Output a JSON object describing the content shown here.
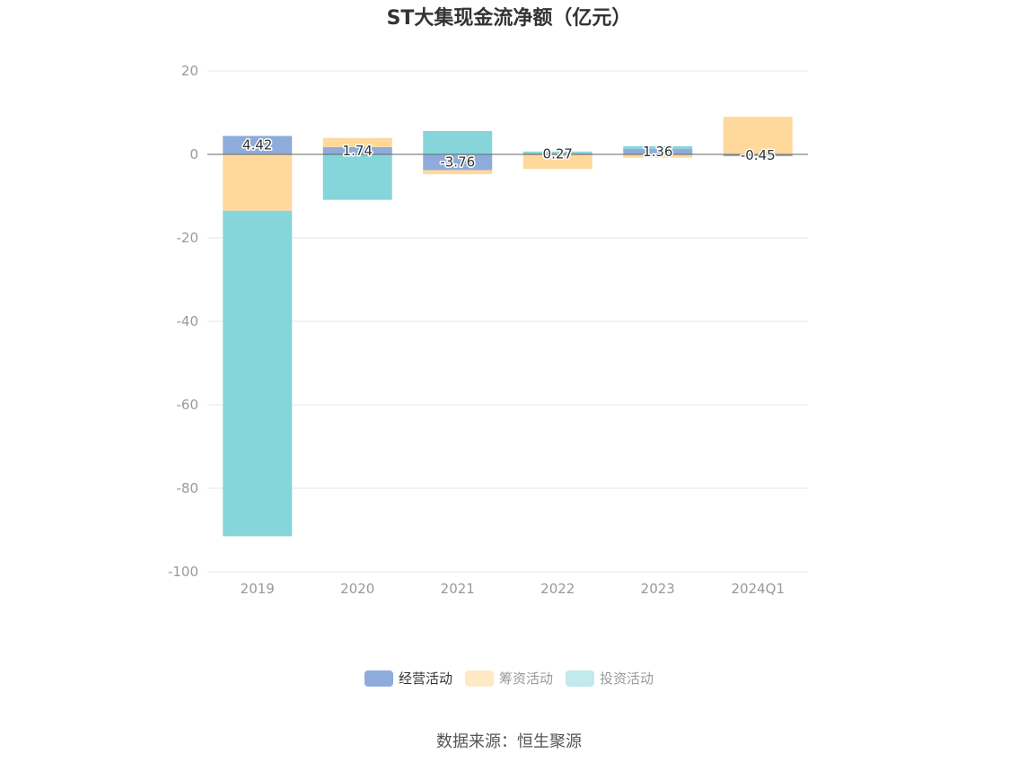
{
  "chart_data": {
    "type": "bar",
    "stacked": true,
    "title": "ST大集现金流净额（亿元）",
    "categories": [
      "2019",
      "2020",
      "2021",
      "2022",
      "2023",
      "2024Q1"
    ],
    "series": [
      {
        "name": "经营活动",
        "color": "#8eacdb",
        "values": [
          4.42,
          1.74,
          -3.76,
          0.27,
          1.36,
          -0.45
        ]
      },
      {
        "name": "筹资活动",
        "color": "#ffd99b",
        "values": [
          -13.5,
          2.2,
          -1.0,
          -3.5,
          -0.8,
          9.0
        ]
      },
      {
        "name": "投资活动",
        "color": "#86d5da",
        "values": [
          -78.0,
          -10.9,
          5.6,
          0.4,
          0.6,
          0.0
        ]
      }
    ],
    "data_labels": [
      "4.42",
      "1.74",
      "-3.76",
      "0.27",
      "1.36",
      "-0.45"
    ],
    "y_ticks": [
      "20",
      "0",
      "-20",
      "-40",
      "-60",
      "-80",
      "-100"
    ],
    "ylim": [
      -100,
      20
    ],
    "grid": true,
    "legend_position": "bottom"
  },
  "legend": {
    "items": [
      {
        "label": "经营活动",
        "color": "#8eacdb",
        "faded": false
      },
      {
        "label": "筹资活动",
        "color": "#ffe9c4",
        "faded": true
      },
      {
        "label": "投资活动",
        "color": "#c2e9eb",
        "faded": true
      }
    ]
  },
  "source": "数据来源：恒生聚源"
}
